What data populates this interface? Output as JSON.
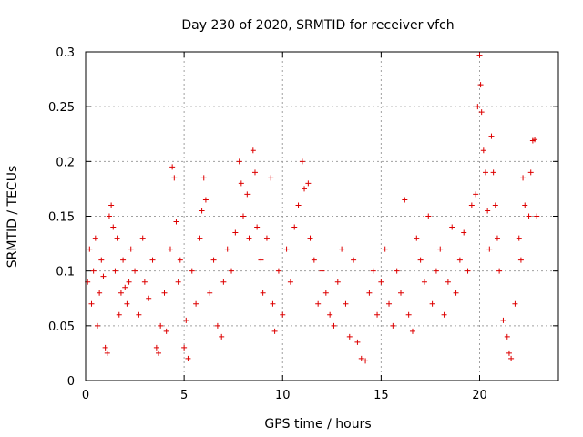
{
  "chart_data": {
    "type": "scatter",
    "title": "Day 230 of 2020, SRMTID for receiver vfch",
    "xlabel": "GPS time / hours",
    "ylabel": "SRMTID / TECUs",
    "xlim": [
      0,
      24
    ],
    "ylim": [
      0,
      0.3
    ],
    "x_ticks": [
      0,
      5,
      10,
      15,
      20
    ],
    "x_tick_labels": [
      "0",
      "5",
      "10",
      "15",
      "20"
    ],
    "y_ticks": [
      0,
      0.05,
      0.1,
      0.15,
      0.2,
      0.25,
      0.3
    ],
    "y_tick_labels": [
      "0",
      "0.05",
      "0.1",
      "0.15",
      "0.2",
      "0.25",
      "0.3"
    ],
    "grid": true,
    "marker": "+",
    "marker_color": "#dd0000",
    "series": [
      {
        "name": "SRMTID",
        "points": [
          [
            0.1,
            0.09
          ],
          [
            0.2,
            0.12
          ],
          [
            0.3,
            0.07
          ],
          [
            0.4,
            0.1
          ],
          [
            0.5,
            0.13
          ],
          [
            0.6,
            0.05
          ],
          [
            0.7,
            0.08
          ],
          [
            0.8,
            0.11
          ],
          [
            0.9,
            0.095
          ],
          [
            1.0,
            0.03
          ],
          [
            1.1,
            0.025
          ],
          [
            1.2,
            0.15
          ],
          [
            1.3,
            0.16
          ],
          [
            1.4,
            0.14
          ],
          [
            1.5,
            0.1
          ],
          [
            1.6,
            0.13
          ],
          [
            1.7,
            0.06
          ],
          [
            1.8,
            0.08
          ],
          [
            1.9,
            0.11
          ],
          [
            2.0,
            0.085
          ],
          [
            2.1,
            0.07
          ],
          [
            2.2,
            0.09
          ],
          [
            2.3,
            0.12
          ],
          [
            2.5,
            0.1
          ],
          [
            2.7,
            0.06
          ],
          [
            2.9,
            0.13
          ],
          [
            3.0,
            0.09
          ],
          [
            3.2,
            0.075
          ],
          [
            3.4,
            0.11
          ],
          [
            3.6,
            0.03
          ],
          [
            3.7,
            0.025
          ],
          [
            3.8,
            0.05
          ],
          [
            4.0,
            0.08
          ],
          [
            4.1,
            0.045
          ],
          [
            4.3,
            0.12
          ],
          [
            4.4,
            0.195
          ],
          [
            4.5,
            0.185
          ],
          [
            4.6,
            0.145
          ],
          [
            4.7,
            0.09
          ],
          [
            4.8,
            0.11
          ],
          [
            5.0,
            0.03
          ],
          [
            5.1,
            0.055
          ],
          [
            5.2,
            0.02
          ],
          [
            5.4,
            0.1
          ],
          [
            5.6,
            0.07
          ],
          [
            5.8,
            0.13
          ],
          [
            5.9,
            0.155
          ],
          [
            6.0,
            0.185
          ],
          [
            6.1,
            0.165
          ],
          [
            6.3,
            0.08
          ],
          [
            6.5,
            0.11
          ],
          [
            6.7,
            0.05
          ],
          [
            6.9,
            0.04
          ],
          [
            7.0,
            0.09
          ],
          [
            7.2,
            0.12
          ],
          [
            7.4,
            0.1
          ],
          [
            7.6,
            0.135
          ],
          [
            7.8,
            0.2
          ],
          [
            7.9,
            0.18
          ],
          [
            8.0,
            0.15
          ],
          [
            8.2,
            0.17
          ],
          [
            8.3,
            0.13
          ],
          [
            8.5,
            0.21
          ],
          [
            8.6,
            0.19
          ],
          [
            8.7,
            0.14
          ],
          [
            8.9,
            0.11
          ],
          [
            9.0,
            0.08
          ],
          [
            9.2,
            0.13
          ],
          [
            9.4,
            0.185
          ],
          [
            9.5,
            0.07
          ],
          [
            9.6,
            0.045
          ],
          [
            9.8,
            0.1
          ],
          [
            10.0,
            0.06
          ],
          [
            10.2,
            0.12
          ],
          [
            10.4,
            0.09
          ],
          [
            10.6,
            0.14
          ],
          [
            10.8,
            0.16
          ],
          [
            11.0,
            0.2
          ],
          [
            11.1,
            0.175
          ],
          [
            11.3,
            0.18
          ],
          [
            11.4,
            0.13
          ],
          [
            11.6,
            0.11
          ],
          [
            11.8,
            0.07
          ],
          [
            12.0,
            0.1
          ],
          [
            12.2,
            0.08
          ],
          [
            12.4,
            0.06
          ],
          [
            12.6,
            0.05
          ],
          [
            12.8,
            0.09
          ],
          [
            13.0,
            0.12
          ],
          [
            13.2,
            0.07
          ],
          [
            13.4,
            0.04
          ],
          [
            13.6,
            0.11
          ],
          [
            13.8,
            0.035
          ],
          [
            14.0,
            0.02
          ],
          [
            14.2,
            0.018
          ],
          [
            14.4,
            0.08
          ],
          [
            14.6,
            0.1
          ],
          [
            14.8,
            0.06
          ],
          [
            15.0,
            0.09
          ],
          [
            15.2,
            0.12
          ],
          [
            15.4,
            0.07
          ],
          [
            15.6,
            0.05
          ],
          [
            15.8,
            0.1
          ],
          [
            16.0,
            0.08
          ],
          [
            16.2,
            0.165
          ],
          [
            16.4,
            0.06
          ],
          [
            16.6,
            0.045
          ],
          [
            16.8,
            0.13
          ],
          [
            17.0,
            0.11
          ],
          [
            17.2,
            0.09
          ],
          [
            17.4,
            0.15
          ],
          [
            17.6,
            0.07
          ],
          [
            17.8,
            0.1
          ],
          [
            18.0,
            0.12
          ],
          [
            18.2,
            0.06
          ],
          [
            18.4,
            0.09
          ],
          [
            18.6,
            0.14
          ],
          [
            18.8,
            0.08
          ],
          [
            19.0,
            0.11
          ],
          [
            19.2,
            0.135
          ],
          [
            19.4,
            0.1
          ],
          [
            19.6,
            0.16
          ],
          [
            19.8,
            0.17
          ],
          [
            19.9,
            0.25
          ],
          [
            20.0,
            0.297
          ],
          [
            20.05,
            0.27
          ],
          [
            20.1,
            0.245
          ],
          [
            20.2,
            0.21
          ],
          [
            20.3,
            0.19
          ],
          [
            20.4,
            0.155
          ],
          [
            20.5,
            0.12
          ],
          [
            20.6,
            0.223
          ],
          [
            20.7,
            0.19
          ],
          [
            20.8,
            0.16
          ],
          [
            20.9,
            0.13
          ],
          [
            21.0,
            0.1
          ],
          [
            21.2,
            0.055
          ],
          [
            21.4,
            0.04
          ],
          [
            21.5,
            0.025
          ],
          [
            21.6,
            0.02
          ],
          [
            21.8,
            0.07
          ],
          [
            22.0,
            0.13
          ],
          [
            22.1,
            0.11
          ],
          [
            22.2,
            0.185
          ],
          [
            22.3,
            0.16
          ],
          [
            22.5,
            0.15
          ],
          [
            22.6,
            0.19
          ],
          [
            22.7,
            0.219
          ],
          [
            22.8,
            0.22
          ],
          [
            22.9,
            0.15
          ]
        ]
      }
    ]
  }
}
